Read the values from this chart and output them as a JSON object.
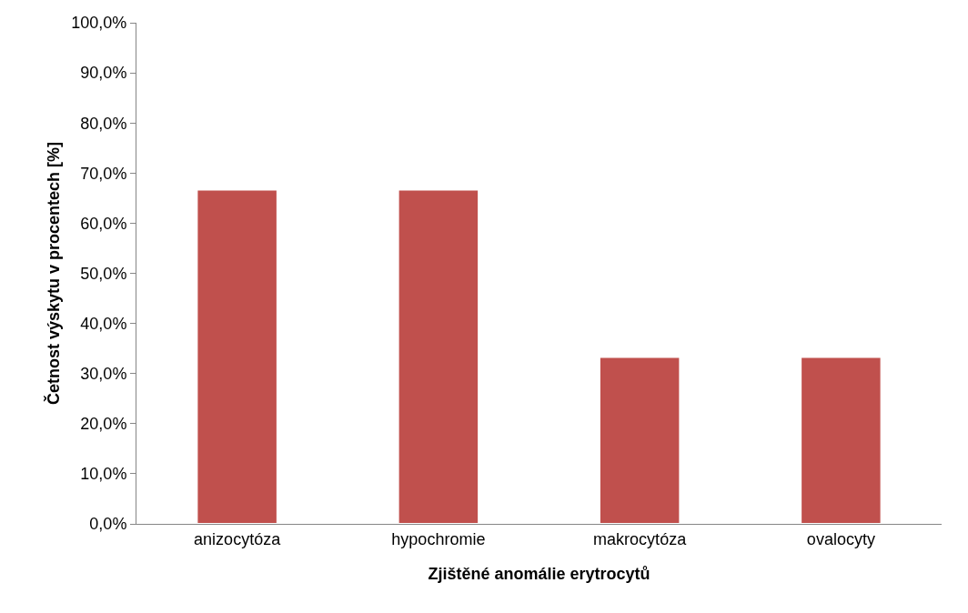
{
  "chart_data": {
    "type": "bar",
    "xlabel": "Zjištěné anomálie erytrocytů",
    "ylabel": "Četnost výskytu v procentech [%]",
    "categories": [
      "anizocytóza",
      "hypochromie",
      "makrocytóza",
      "ovalocyty"
    ],
    "values": [
      66.7,
      66.7,
      33.3,
      33.3
    ],
    "color": "#c0504d",
    "ylim": [
      0,
      100
    ],
    "yticks": [
      {
        "value": 0,
        "label": "0,0%"
      },
      {
        "value": 10,
        "label": "10,0%"
      },
      {
        "value": 20,
        "label": "20,0%"
      },
      {
        "value": 30,
        "label": "30,0%"
      },
      {
        "value": 40,
        "label": "40,0%"
      },
      {
        "value": 50,
        "label": "50,0%"
      },
      {
        "value": 60,
        "label": "60,0%"
      },
      {
        "value": 70,
        "label": "70,0%"
      },
      {
        "value": 80,
        "label": "80,0%"
      },
      {
        "value": 90,
        "label": "90,0%"
      },
      {
        "value": 100,
        "label": "100,0%"
      }
    ],
    "orientation": "vertical"
  }
}
